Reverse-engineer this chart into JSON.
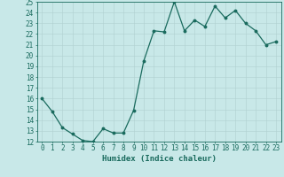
{
  "x": [
    0,
    1,
    2,
    3,
    4,
    5,
    6,
    7,
    8,
    9,
    10,
    11,
    12,
    13,
    14,
    15,
    16,
    17,
    18,
    19,
    20,
    21,
    22,
    23
  ],
  "y": [
    16.0,
    14.8,
    13.3,
    12.7,
    12.1,
    12.0,
    13.2,
    12.8,
    12.8,
    14.9,
    19.5,
    22.3,
    22.2,
    25.0,
    22.3,
    23.3,
    22.7,
    24.6,
    23.5,
    24.2,
    23.0,
    22.3,
    21.0,
    21.3
  ],
  "line_color": "#1a6b5e",
  "marker": "o",
  "marker_size": 1.8,
  "linewidth": 0.9,
  "xlabel": "Humidex (Indice chaleur)",
  "ylim": [
    12,
    25
  ],
  "xlim": [
    -0.5,
    23.5
  ],
  "yticks": [
    12,
    13,
    14,
    15,
    16,
    17,
    18,
    19,
    20,
    21,
    22,
    23,
    24,
    25
  ],
  "xticks": [
    0,
    1,
    2,
    3,
    4,
    5,
    6,
    7,
    8,
    9,
    10,
    11,
    12,
    13,
    14,
    15,
    16,
    17,
    18,
    19,
    20,
    21,
    22,
    23
  ],
  "background_color": "#c8e8e8",
  "grid_color": "#b0d0d0",
  "tick_color": "#1a6b5e",
  "label_color": "#1a6b5e",
  "xlabel_fontsize": 6.5,
  "tick_fontsize": 5.5
}
